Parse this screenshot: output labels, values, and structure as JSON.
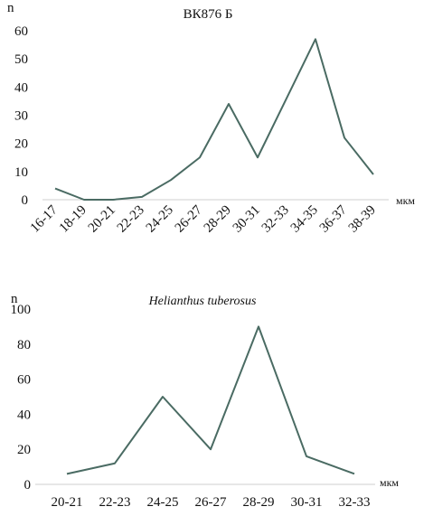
{
  "chart_data": [
    {
      "type": "line",
      "title": "ВК876 Б",
      "ylabel": "n",
      "xlabel": "мкм",
      "categories": [
        "16-17",
        "18-19",
        "20-21",
        "22-23",
        "24-25",
        "26-27",
        "28-29",
        "30-31",
        "32-33",
        "34-35",
        "36-37",
        "38-39"
      ],
      "values": [
        4,
        0,
        0,
        1,
        7,
        15,
        34,
        15,
        36,
        57,
        22,
        9
      ],
      "ylim": [
        0,
        60
      ],
      "yticks": [
        0,
        10,
        20,
        30,
        40,
        50,
        60
      ],
      "grid": false,
      "color": "#4a6b63"
    },
    {
      "type": "line",
      "title": "Helianthus tuberosus",
      "ylabel": "n",
      "xlabel": "мкм",
      "categories": [
        "20-21",
        "22-23",
        "24-25",
        "26-27",
        "28-29",
        "30-31",
        "32-33"
      ],
      "values": [
        6,
        12,
        50,
        20,
        90,
        16,
        6
      ],
      "ylim": [
        0,
        100
      ],
      "yticks": [
        0,
        20,
        40,
        60,
        80,
        100
      ],
      "grid": false,
      "color": "#4a6b63"
    }
  ]
}
